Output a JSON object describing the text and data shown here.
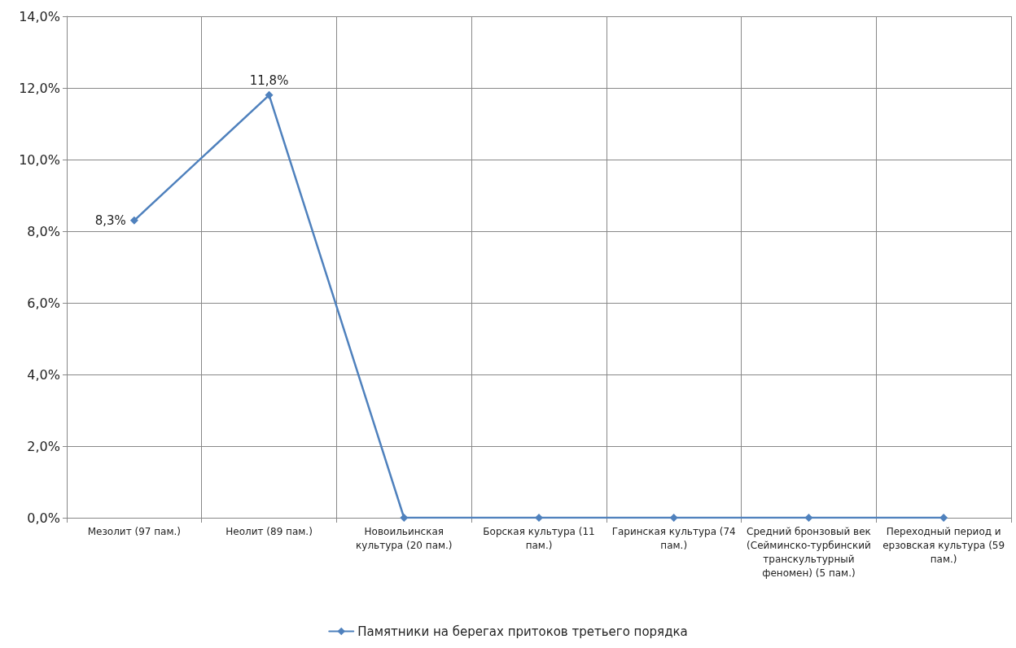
{
  "chart_data": {
    "type": "line",
    "categories": [
      "Мезолит (97 пам.)",
      "Неолит (89 пам.)",
      "Новоильинская культура (20 пам.)",
      "Борская культура (11 пам.)",
      "Гаринская культура (74 пам.)",
      "Средний бронзовый век (Сейминско-турбинский транскультурный феномен) (5 пам.)",
      "Переходный период и ерзовская культура (59 пам.)"
    ],
    "series": [
      {
        "name": "Памятники на берегах притоков третьего порядка",
        "color": "#4f81bd",
        "values": [
          8.3,
          11.8,
          0,
          0,
          0,
          0,
          0
        ],
        "value_labels": [
          "8,3%",
          "11,8%",
          null,
          null,
          null,
          null,
          null
        ]
      }
    ],
    "ylim": [
      0,
      14
    ],
    "yticks": [
      {
        "value": 0,
        "label": "0,0%"
      },
      {
        "value": 2,
        "label": "2,0%"
      },
      {
        "value": 4,
        "label": "4,0%"
      },
      {
        "value": 6,
        "label": "6,0%"
      },
      {
        "value": 8,
        "label": "8,0%"
      },
      {
        "value": 10,
        "label": "10,0%"
      },
      {
        "value": 12,
        "label": "12,0%"
      },
      {
        "value": 14,
        "label": "14,0%"
      }
    ],
    "grid": true,
    "legend": "bottom",
    "marker": "diamond",
    "line_style": "solid"
  }
}
